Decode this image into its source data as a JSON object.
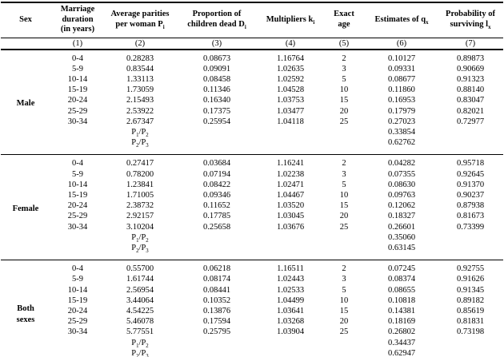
{
  "table": {
    "columns": [
      {
        "id": "sex",
        "label": "Sex",
        "num": ""
      },
      {
        "id": "duration",
        "label": "Marriage\nduration\n(in years)",
        "num": "(1)"
      },
      {
        "id": "parities",
        "label": "Average parities\nper woman P_{i}",
        "num": "(2)"
      },
      {
        "id": "dead",
        "label": "Proportion of\nchildren dead D_{i}",
        "num": "(3)"
      },
      {
        "id": "mult",
        "label": "Multipliers k_{i}",
        "num": "(4)"
      },
      {
        "id": "age",
        "label": "Exact\nage",
        "num": "(5)"
      },
      {
        "id": "q",
        "label": "Estimates of q_{x}",
        "num": "(6)"
      },
      {
        "id": "l",
        "label": "Probability of\nsurviving l_{x}",
        "num": "(7)"
      }
    ],
    "sections": [
      {
        "sex": "Male",
        "rows": [
          [
            "0-4",
            "0.28283",
            "0.08673",
            "1.16764",
            "2",
            "0.10127",
            "0.89873"
          ],
          [
            "5-9",
            "0.83544",
            "0.09091",
            "1.02635",
            "3",
            "0.09331",
            "0.90669"
          ],
          [
            "10-14",
            "1.33113",
            "0.08458",
            "1.02592",
            "5",
            "0.08677",
            "0.91323"
          ],
          [
            "15-19",
            "1.73059",
            "0.11346",
            "1.04528",
            "10",
            "0.11860",
            "0.88140"
          ],
          [
            "20-24",
            "2.15493",
            "0.16340",
            "1.03753",
            "15",
            "0.16953",
            "0.83047"
          ],
          [
            "25-29",
            "2.53922",
            "0.17375",
            "1.03477",
            "20",
            "0.17979",
            "0.82021"
          ],
          [
            "30-34",
            "2.67347",
            "0.25954",
            "1.04118",
            "25",
            "0.27023",
            "0.72977"
          ]
        ],
        "ratio_rows": [
          {
            "label": "P_{1}/P_{2}",
            "value": "0.33854"
          },
          {
            "label": "P_{2}/P_{3}",
            "value": "0.62762"
          }
        ]
      },
      {
        "sex": "Female",
        "rows": [
          [
            "0-4",
            "0.27417",
            "0.03684",
            "1.16241",
            "2",
            "0.04282",
            "0.95718"
          ],
          [
            "5-9",
            "0.78200",
            "0.07194",
            "1.02238",
            "3",
            "0.07355",
            "0.92645"
          ],
          [
            "10-14",
            "1.23841",
            "0.08422",
            "1.02471",
            "5",
            "0.08630",
            "0.91370"
          ],
          [
            "15-19",
            "1.71005",
            "0.09346",
            "1.04467",
            "10",
            "0.09763",
            "0.90237"
          ],
          [
            "20-24",
            "2.38732",
            "0.11652",
            "1.03520",
            "15",
            "0.12062",
            "0.87938"
          ],
          [
            "25-29",
            "2.92157",
            "0.17785",
            "1.03045",
            "20",
            "0.18327",
            "0.81673"
          ],
          [
            "30-34",
            "3.10204",
            "0.25658",
            "1.03676",
            "25",
            "0.26601",
            "0.73399"
          ]
        ],
        "ratio_rows": [
          {
            "label": "P_{1}/P_{2}",
            "value": "0.35060"
          },
          {
            "label": "P_{2}/P_{3}",
            "value": "0.63145"
          }
        ]
      },
      {
        "sex": "Both\nsexes",
        "rows": [
          [
            "0-4",
            "0.55700",
            "0.06218",
            "1.16511",
            "2",
            "0.07245",
            "0.92755"
          ],
          [
            "5-9",
            "1.61744",
            "0.08174",
            "1.02443",
            "3",
            "0.08374",
            "0.91626"
          ],
          [
            "10-14",
            "2.56954",
            "0.08441",
            "1.02533",
            "5",
            "0.08655",
            "0.91345"
          ],
          [
            "15-19",
            "3.44064",
            "0.10352",
            "1.04499",
            "10",
            "0.10818",
            "0.89182"
          ],
          [
            "20-24",
            "4.54225",
            "0.13876",
            "1.03641",
            "15",
            "0.14381",
            "0.85619"
          ],
          [
            "25-29",
            "5.46078",
            "0.17594",
            "1.03268",
            "20",
            "0.18169",
            "0.81831"
          ],
          [
            "30-34",
            "5.77551",
            "0.25795",
            "1.03904",
            "25",
            "0.26802",
            "0.73198"
          ]
        ],
        "ratio_rows": [
          {
            "label": "P_{1}/P_{2}",
            "value": "0.34437"
          },
          {
            "label": "P_{2}/P_{3}",
            "value": "0.62947"
          }
        ]
      }
    ]
  }
}
